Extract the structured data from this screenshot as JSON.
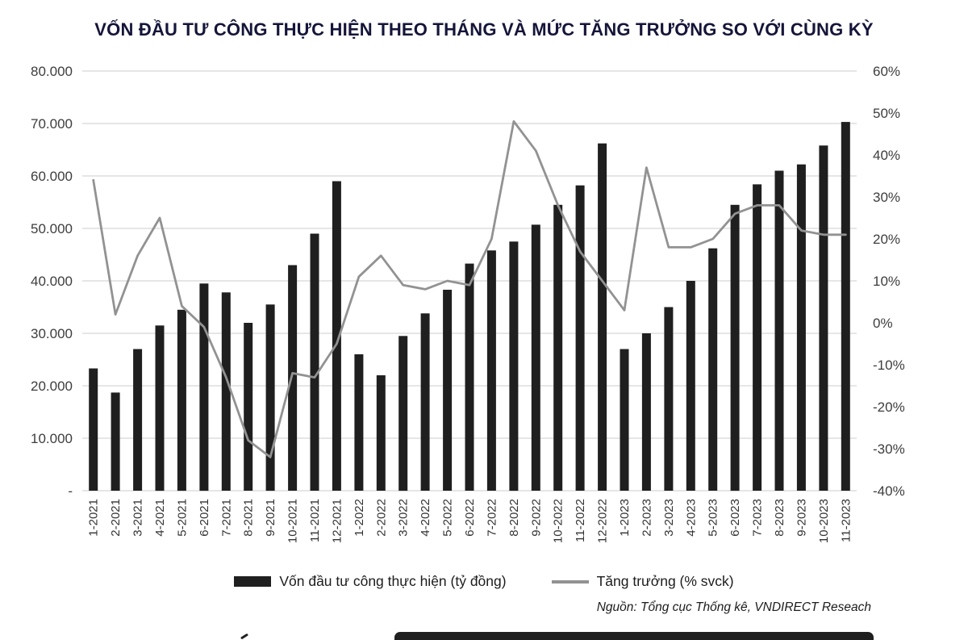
{
  "title": "VỐN ĐẦU TƯ CÔNG THỰC HIỆN THEO THÁNG VÀ MỨC TĂNG TRƯỞNG SO VỚI CÙNG KỲ",
  "legend": {
    "bars": "Vốn đầu tư công thực hiện (tỷ đồng)",
    "line": "Tăng trưởng (% svck)"
  },
  "source": "Nguồn: Tổng cục Thống kê, VNDIRECT Reseach",
  "colors": {
    "bar": "#1f1f1f",
    "line": "#929292",
    "grid": "#d8d8d8",
    "axis_text": "#3d3d3d",
    "x_label_text": "#333333",
    "title": "#15153a"
  },
  "chart_data": {
    "type": "bar",
    "combo": "bar+line dual axis",
    "grid": true,
    "legend_position": "bottom",
    "categories": [
      "1-2021",
      "2-2021",
      "3-2021",
      "4-2021",
      "5-2021",
      "6-2021",
      "7-2021",
      "8-2021",
      "9-2021",
      "10-2021",
      "11-2021",
      "12-2021",
      "1-2022",
      "2-2022",
      "3-2022",
      "4-2022",
      "5-2022",
      "6-2022",
      "7-2022",
      "8-2022",
      "9-2022",
      "10-2022",
      "11-2022",
      "12-2022",
      "1-2023",
      "2-2023",
      "3-2023",
      "4-2023",
      "5-2023",
      "6-2023",
      "7-2023",
      "8-2023",
      "9-2023",
      "10-2023",
      "11-2023"
    ],
    "series": [
      {
        "name": "Vốn đầu tư công thực hiện (tỷ đồng)",
        "render": "bar",
        "axis": "left",
        "values": [
          23300,
          18700,
          27000,
          31500,
          34500,
          39500,
          37800,
          32000,
          35500,
          43000,
          49000,
          59000,
          26000,
          22000,
          29500,
          33800,
          38300,
          43300,
          45800,
          47500,
          50700,
          54500,
          58200,
          66200,
          27000,
          30000,
          35000,
          40000,
          46200,
          54500,
          58400,
          61000,
          62200,
          65800,
          70300
        ]
      },
      {
        "name": "Tăng trưởng (% svck)",
        "render": "line",
        "axis": "right",
        "values": [
          34,
          2,
          16,
          25,
          4,
          -1,
          -13,
          -28,
          -32,
          -12,
          -13,
          -5,
          11,
          16,
          9,
          8,
          10,
          9,
          20,
          48,
          41,
          28,
          17,
          10,
          3,
          37,
          18,
          18,
          20,
          26,
          28,
          28,
          22,
          21,
          21
        ]
      }
    ],
    "left_axis": {
      "min": 0,
      "max": 80000,
      "ticks": [
        {
          "value": 80000,
          "label": "80.000"
        },
        {
          "value": 70000,
          "label": "70.000"
        },
        {
          "value": 60000,
          "label": "60.000"
        },
        {
          "value": 50000,
          "label": "50.000"
        },
        {
          "value": 40000,
          "label": "40.000"
        },
        {
          "value": 30000,
          "label": "30.000"
        },
        {
          "value": 20000,
          "label": "20.000"
        },
        {
          "value": 10000,
          "label": "10.000"
        },
        {
          "value": 0,
          "label": "-"
        }
      ]
    },
    "right_axis": {
      "min": -40,
      "max": 60,
      "ticks": [
        {
          "value": 60,
          "label": "60%"
        },
        {
          "value": 50,
          "label": "50%"
        },
        {
          "value": 40,
          "label": "40%"
        },
        {
          "value": 30,
          "label": "30%"
        },
        {
          "value": 20,
          "label": "20%"
        },
        {
          "value": 10,
          "label": "10%"
        },
        {
          "value": 0,
          "label": "0%"
        },
        {
          "value": -10,
          "label": "-10%"
        },
        {
          "value": -20,
          "label": "-20%"
        },
        {
          "value": -30,
          "label": "-30%"
        },
        {
          "value": -40,
          "label": "-40%"
        }
      ]
    }
  }
}
